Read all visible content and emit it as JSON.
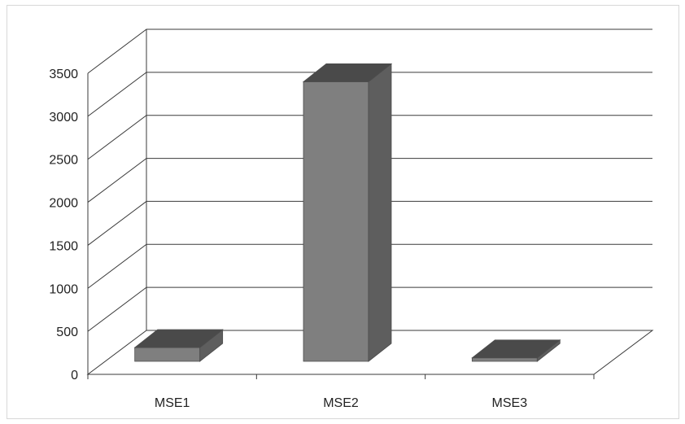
{
  "chart_data": {
    "type": "bar",
    "style": "3d-column",
    "title": "",
    "xlabel": "",
    "ylabel": "",
    "categories": [
      "MSE1",
      "MSE2",
      "MSE3"
    ],
    "series": [
      {
        "values": [
          160,
          3250,
          40
        ]
      }
    ],
    "ylim": [
      0,
      3500
    ],
    "yticks": [
      0,
      500,
      1000,
      1500,
      2000,
      2500,
      3000,
      3500
    ],
    "grid": true,
    "legend": "none",
    "colors": {
      "bar_front": "#7f7f7f",
      "bar_side": "#5e5e5e",
      "bar_top": "#4a4a4a",
      "grid": "#3a3a3a",
      "text": "#222222"
    }
  }
}
